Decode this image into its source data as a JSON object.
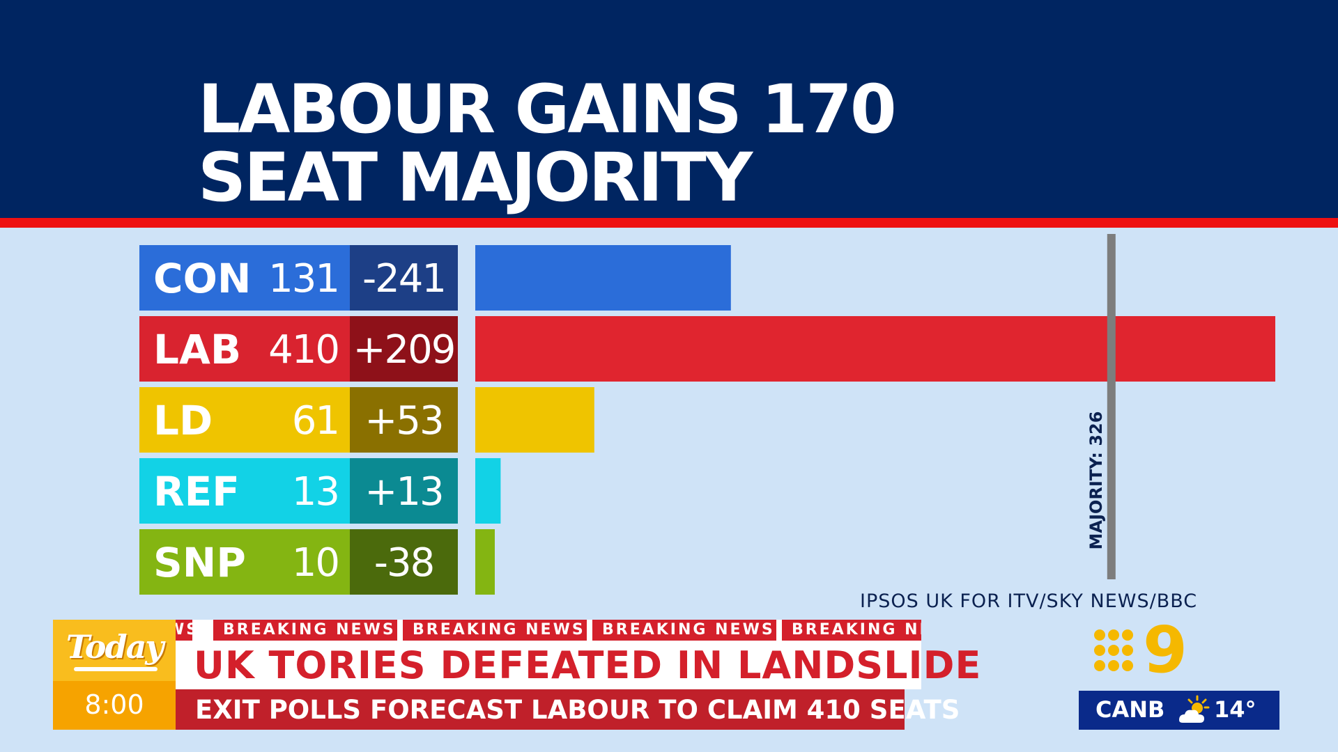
{
  "header": {
    "title_line1": "LABOUR GAINS 170",
    "title_line2": "SEAT MAJORITY",
    "background_color": "#002561",
    "stripe_color": "#ee1111"
  },
  "chart_data": {
    "type": "bar",
    "orientation": "horizontal",
    "categories": [
      "CON",
      "LAB",
      "LD",
      "REF",
      "SNP"
    ],
    "series": [
      {
        "values": [
          131,
          410,
          61,
          13,
          10
        ]
      }
    ],
    "changes": [
      "-241",
      "+209",
      "+53",
      "+13",
      "-38"
    ],
    "colors": {
      "CON": {
        "label": "#2b6dd9",
        "change": "#1d3f86",
        "bar": "#2b6dd9"
      },
      "LAB": {
        "label": "#d9232f",
        "change": "#8e1119",
        "bar": "#e0252f"
      },
      "LD": {
        "label": "#efc400",
        "change": "#8a7000",
        "bar": "#efc400"
      },
      "REF": {
        "label": "#12d2e6",
        "change": "#0b8a92",
        "bar": "#12d2e6"
      },
      "SNP": {
        "label": "#84b512",
        "change": "#4b6a0c",
        "bar": "#84b512"
      }
    },
    "xlim": [
      0,
      410
    ],
    "majority": {
      "value": 326,
      "label": "MAJORITY: 326"
    },
    "source": "IPSOS UK FOR ITV/SKY NEWS/BBC",
    "grid": false,
    "legend": "none"
  },
  "ticker": {
    "show_logo": "Today",
    "time": "8:00",
    "breaking_items": [
      "WS",
      "BREAKING NEWS",
      "BREAKING NEWS",
      "BREAKING NEWS",
      "BREAKING NE"
    ],
    "headline": "UK TORIES DEFEATED IN LANDSLIDE",
    "subheadline": "EXIT POLLS FORECAST LABOUR TO CLAIM 410 SEATS"
  },
  "channel": {
    "digit": "9"
  },
  "weather": {
    "city": "CANB",
    "icon": "partly-cloudy-icon",
    "temp": "14°"
  }
}
